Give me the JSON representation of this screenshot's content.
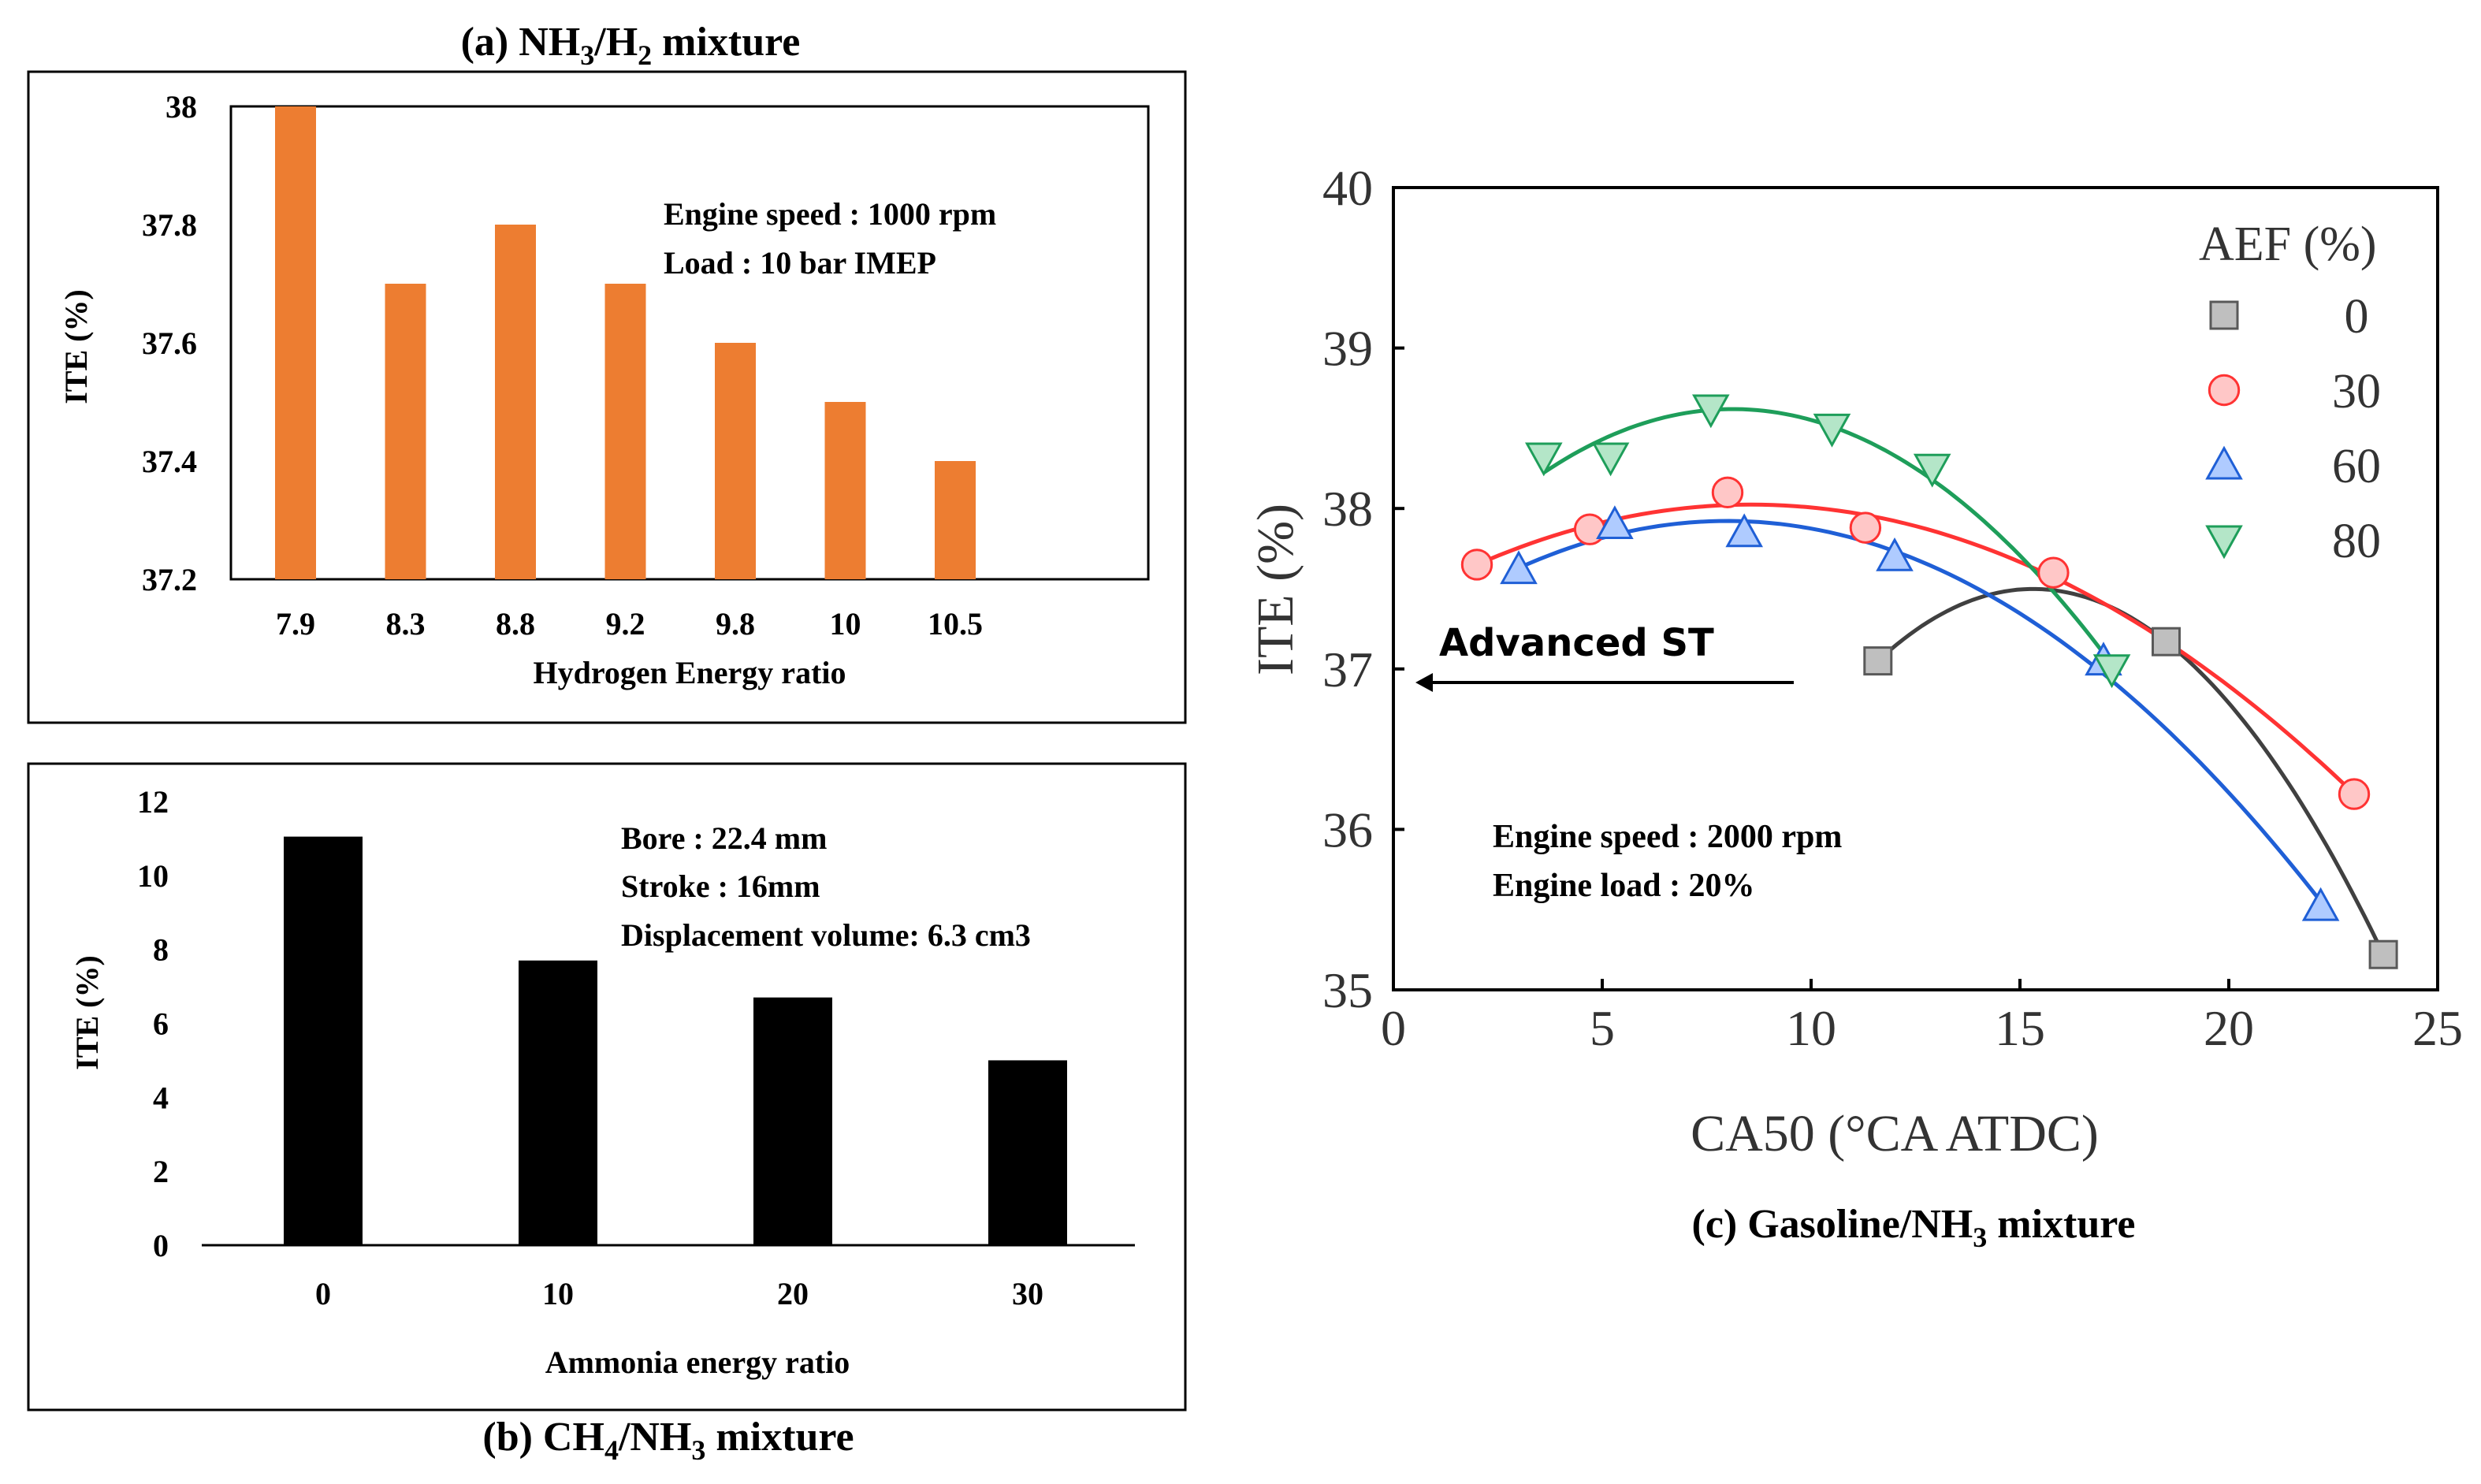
{
  "chart_data": [
    {
      "id": "a",
      "type": "bar",
      "title": "(a) NH3/H2 mixture",
      "title_parts": {
        "prefix": "(a) NH",
        "sub1": "3",
        "mid": "/H",
        "sub2": "2",
        "suffix": " mixture"
      },
      "categories": [
        "7.9",
        "8.3",
        "8.8",
        "9.2",
        "9.8",
        "10",
        "10.5"
      ],
      "values": [
        38.0,
        37.7,
        37.8,
        37.7,
        37.6,
        37.5,
        37.4
      ],
      "ylim": [
        37.2,
        38.0
      ],
      "yticks": [
        "37.2",
        "37.4",
        "37.6",
        "37.8",
        "38"
      ],
      "xlabel": "Hydrogen Energy ratio",
      "ylabel": "ITE  (%)",
      "annotations": [
        "Engine speed : 1000 rpm",
        "Load : 10 bar IMEP"
      ],
      "bar_color": "#ED7D31"
    },
    {
      "id": "b",
      "type": "bar",
      "title": "(b) CH4/NH3 mixture",
      "title_parts": {
        "prefix": "(b) CH",
        "sub1": "4",
        "mid": "/NH",
        "sub2": "3",
        "suffix": " mixture"
      },
      "categories": [
        "0",
        "10",
        "20",
        "30"
      ],
      "values": [
        11.05,
        7.7,
        6.7,
        5.0
      ],
      "ylim": [
        0,
        12
      ],
      "yticks": [
        "0",
        "2",
        "4",
        "6",
        "8",
        "10",
        "12"
      ],
      "xlabel": "Ammonia energy ratio",
      "ylabel": "ITE (%)",
      "annotations": [
        "Bore : 22.4 mm",
        "Stroke : 16mm",
        "Displacement volume: 6.3 cm3"
      ],
      "bar_color": "#000000"
    },
    {
      "id": "c",
      "type": "scatter",
      "title": "(c) Gasoline/NH3 mixture",
      "title_parts": {
        "prefix": "(c) Gasoline/NH",
        "sub1": "3",
        "suffix": " mixture"
      },
      "xlabel": "CA50 (°CA ATDC)",
      "ylabel": "ITE (%)",
      "xlim": [
        0,
        25
      ],
      "ylim": [
        35,
        40
      ],
      "xticks": [
        "0",
        "5",
        "10",
        "15",
        "20",
        "25"
      ],
      "yticks": [
        "35",
        "36",
        "37",
        "38",
        "39",
        "40"
      ],
      "legend_title": "AEF (%)",
      "legend_position": "top-right",
      "arrow_label": "Advanced ST",
      "annotations": [
        "Engine speed : 2000 rpm",
        "Engine load : 20%"
      ],
      "series": [
        {
          "name": "0",
          "marker": "square",
          "fill": "#BFBFBF",
          "stroke": "#595959",
          "line": "#404040",
          "x": [
            11.6,
            18.5,
            23.7
          ],
          "y": [
            37.05,
            37.17,
            35.22
          ]
        },
        {
          "name": "30",
          "marker": "circle",
          "fill": "#FFC7C7",
          "stroke": "#FF3333",
          "line": "#FF3333",
          "x": [
            2.0,
            4.7,
            8.0,
            11.3,
            15.8,
            23.0
          ],
          "y": [
            37.65,
            37.87,
            38.1,
            37.88,
            37.6,
            36.22
          ]
        },
        {
          "name": "60",
          "marker": "triangle-up",
          "fill": "#AFCBFF",
          "stroke": "#1F5FD6",
          "line": "#1F5FD6",
          "x": [
            3.0,
            5.3,
            8.4,
            12.0,
            17.0,
            22.2
          ],
          "y": [
            37.62,
            37.9,
            37.85,
            37.7,
            37.05,
            35.52
          ]
        },
        {
          "name": "80",
          "marker": "triangle-down",
          "fill": "#B4E6C8",
          "stroke": "#1E9E5A",
          "line": "#1E9E5A",
          "x": [
            3.6,
            5.2,
            7.6,
            10.5,
            12.9,
            17.2
          ],
          "y": [
            38.32,
            38.32,
            38.62,
            38.5,
            38.25,
            37.0
          ]
        }
      ]
    }
  ]
}
